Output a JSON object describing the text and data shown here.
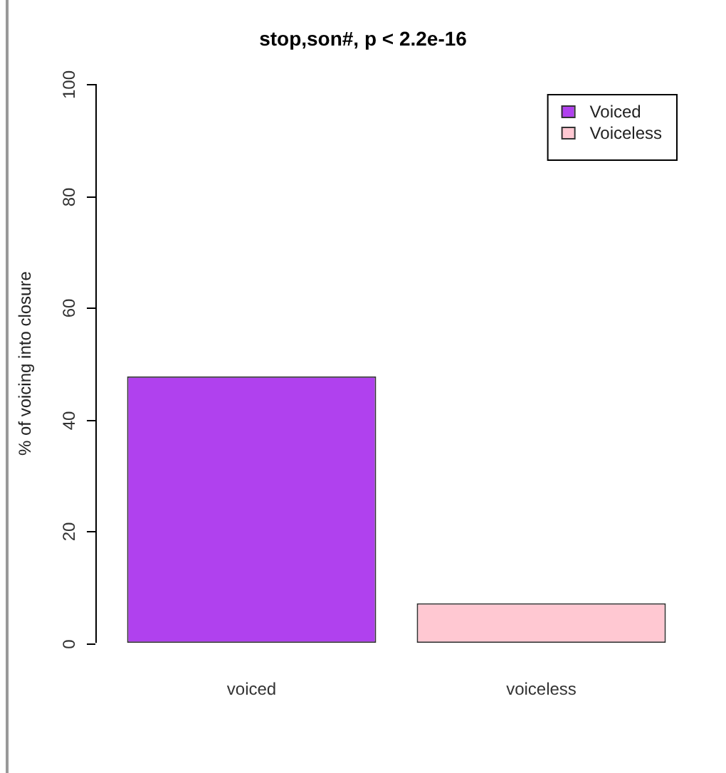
{
  "chart_data": {
    "type": "bar",
    "title": "stop,son#, p < 2.2e-16",
    "ylabel": "% of voicing into closure",
    "categories": [
      "voiced",
      "voiceless"
    ],
    "series": [
      {
        "name": "Voiced",
        "color": "#b041ee",
        "values": [
          47.7,
          null
        ]
      },
      {
        "name": "Voiceless",
        "color": "#ffc8d2",
        "values": [
          null,
          7.1
        ]
      }
    ],
    "ylim": [
      0,
      100
    ],
    "yticks": [
      0,
      20,
      40,
      60,
      80,
      100
    ],
    "grid": false,
    "legend": "top right"
  }
}
